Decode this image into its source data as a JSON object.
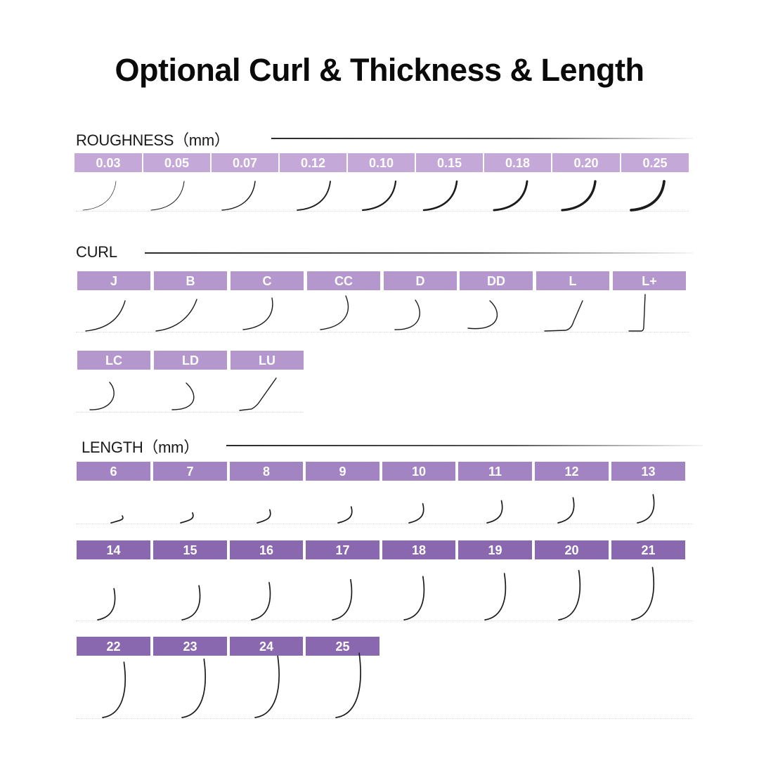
{
  "title": "Optional Curl & Thickness & Length",
  "colors": {
    "roughness_label": "#c4a8d8",
    "curl_label": "#b497cc",
    "length_label_light": "#a284c2",
    "length_label_dark": "#8a68b0",
    "lash": "#1c1c1c"
  },
  "roughness": {
    "heading": "ROUGHNESS（mm）",
    "items": [
      "0.03",
      "0.05",
      "0.07",
      "0.12",
      "0.10",
      "0.15",
      "0.18",
      "0.20",
      "0.25"
    ]
  },
  "curl": {
    "heading": "CURL",
    "items": [
      "J",
      "B",
      "C",
      "CC",
      "D",
      "DD",
      "L",
      "L+",
      "LC",
      "LD",
      "LU"
    ]
  },
  "length": {
    "heading": "LENGTH（mm）",
    "items": [
      "6",
      "7",
      "8",
      "9",
      "10",
      "11",
      "12",
      "13",
      "14",
      "15",
      "16",
      "17",
      "18",
      "19",
      "20",
      "21",
      "22",
      "23",
      "24",
      "25"
    ]
  }
}
